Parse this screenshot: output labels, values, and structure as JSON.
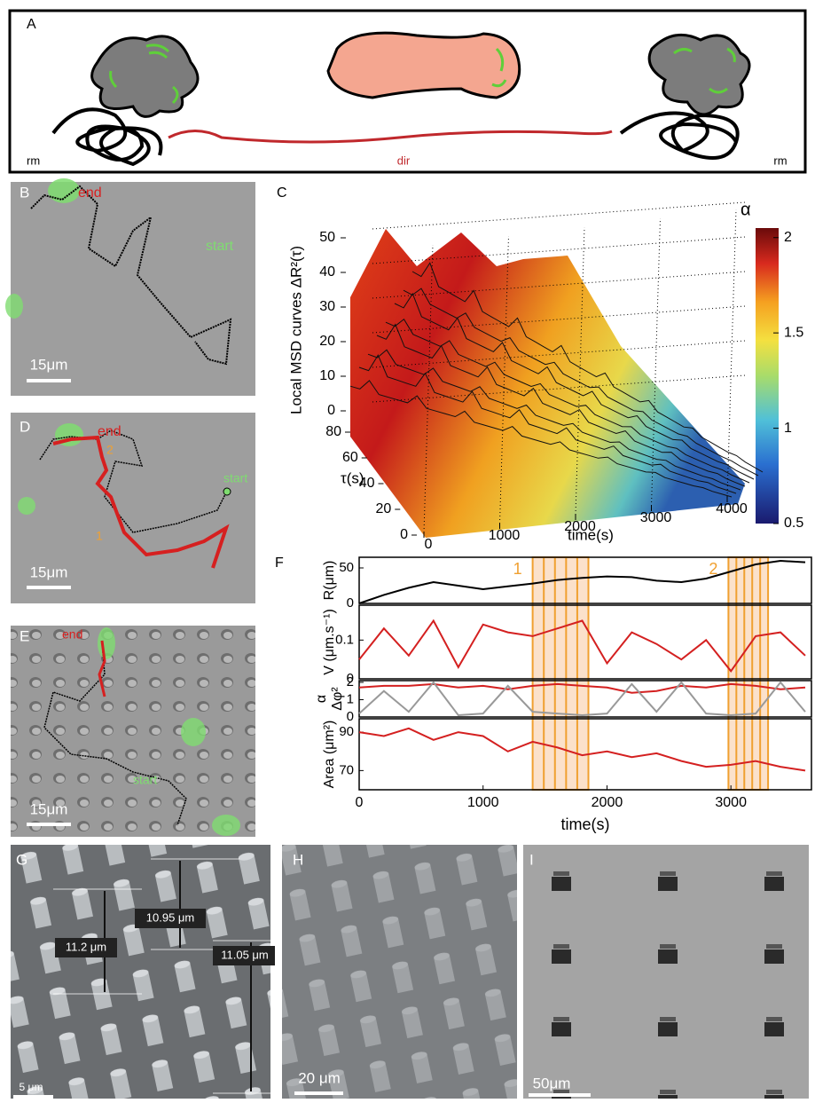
{
  "panel_a": {
    "label": "A",
    "left": "rm",
    "middle": "dir",
    "right": "rm"
  },
  "panel_b": {
    "label": "B",
    "end": "end",
    "start": "start",
    "scale": "15μm"
  },
  "panel_c": {
    "label": "C",
    "z_label": "Local MSD curves ΔR²(τ)",
    "zlim": [
      0,
      50
    ],
    "zticks": [
      0,
      10,
      20,
      30,
      40,
      50
    ],
    "tau_label": "τ(s)",
    "tau_lim": [
      0,
      80
    ],
    "tau_ticks": [
      0,
      20,
      40,
      60,
      80
    ],
    "time_label": "time(s)",
    "time_lim": [
      0,
      4000
    ],
    "time_ticks": [
      0,
      1000,
      2000,
      3000,
      4000
    ],
    "colorbar_label": "α",
    "colorbar_lim": [
      0.5,
      2.05
    ],
    "colorbar_ticks": [
      0.5,
      1,
      1.5,
      2
    ]
  },
  "panel_d": {
    "label": "D",
    "end": "end",
    "mark_2": "2",
    "start": "start",
    "mark_1": "1",
    "scale": "15μm"
  },
  "panel_e": {
    "label": "E",
    "end": "end",
    "start": "start",
    "scale": "15μm"
  },
  "panel_f": {
    "label": "F",
    "xlim": [
      0,
      3650
    ],
    "xticks": [
      0,
      1000,
      2000,
      3000
    ],
    "x_label": "time(s)",
    "x": [
      0,
      200,
      400,
      600,
      800,
      1000,
      1200,
      1400,
      1600,
      1800,
      2000,
      2200,
      2400,
      2600,
      2800,
      3000,
      3200,
      3400,
      3600
    ],
    "highlights": [
      {
        "label": "1",
        "range": [
          1400,
          1850
        ]
      },
      {
        "label": "2",
        "range": [
          2980,
          3300
        ]
      }
    ],
    "plots": [
      {
        "y_label": [
          "R(μm)"
        ],
        "ylim": [
          0,
          65
        ],
        "yticks": [
          0,
          50
        ],
        "series": [
          {
            "color": "#000000",
            "values": [
              0,
              12,
              22,
              30,
              25,
              20,
              24,
              28,
              33,
              36,
              38,
              37,
              32,
              30,
              35,
              45,
              55,
              60,
              58
            ]
          }
        ]
      },
      {
        "y_label": [
          "V (μm.s⁻¹)"
        ],
        "ylim": [
          0,
          0.19
        ],
        "yticks": [
          0,
          0.1
        ],
        "series": [
          {
            "color": "#d42020",
            "values": [
              0.05,
              0.13,
              0.06,
              0.15,
              0.03,
              0.14,
              0.12,
              0.11,
              0.13,
              0.15,
              0.04,
              0.12,
              0.09,
              0.05,
              0.1,
              0.02,
              0.11,
              0.12,
              0.06
            ]
          }
        ]
      },
      {
        "y_label": [
          "α",
          "Δφ²"
        ],
        "ylim": [
          0,
          2.1
        ],
        "yticks": [
          0,
          1,
          2
        ],
        "series": [
          {
            "color": "#d42020",
            "values": [
              1.7,
              1.8,
              1.8,
              1.9,
              1.7,
              1.8,
              1.6,
              1.8,
              1.9,
              1.8,
              1.7,
              1.4,
              1.5,
              1.8,
              1.7,
              1.9,
              1.8,
              1.6,
              1.7
            ]
          },
          {
            "color": "#999999",
            "values": [
              0.2,
              1.5,
              0.3,
              2,
              0.1,
              0.2,
              1.8,
              0.3,
              0.2,
              0.1,
              0.2,
              1.9,
              0.3,
              2,
              0.2,
              0.1,
              0.2,
              2,
              0.3
            ]
          }
        ]
      },
      {
        "y_label": [
          "Area (μm²)"
        ],
        "ylim": [
          60,
          97
        ],
        "yticks": [
          70,
          90
        ],
        "series": [
          {
            "color": "#d42020",
            "values": [
              90,
              88,
              92,
              86,
              90,
              88,
              80,
              85,
              82,
              78,
              80,
              77,
              79,
              75,
              72,
              73,
              75,
              72,
              70
            ]
          }
        ]
      }
    ]
  },
  "panel_g": {
    "label": "G",
    "h1": "10.95 μm",
    "h2": "11.2 μm",
    "h3": "11.05 μm",
    "scale": "5 μm"
  },
  "panel_h": {
    "label": "H",
    "scale": "20 μm"
  },
  "panel_i": {
    "label": "I",
    "scale": "50μm"
  }
}
